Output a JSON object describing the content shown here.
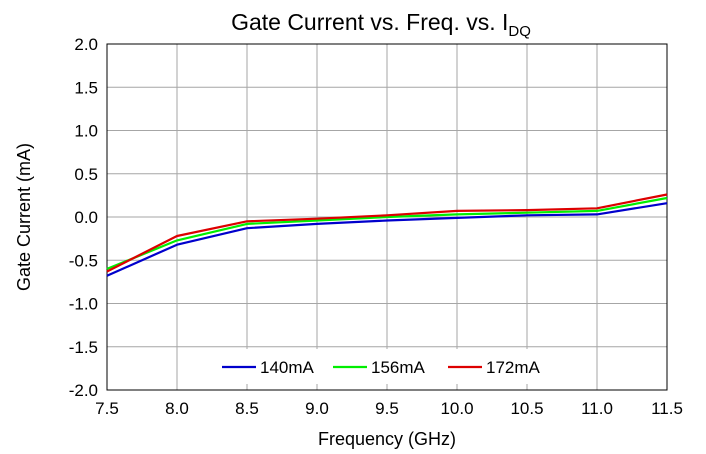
{
  "chart_data": {
    "type": "line",
    "title": "Gate Current vs. Freq. vs. I",
    "title_subscript": "DQ",
    "xlabel": "Frequency (GHz)",
    "ylabel": "Gate Current (mA)",
    "xlim": [
      7.5,
      11.5
    ],
    "ylim": [
      -2.0,
      2.0
    ],
    "x_ticks": [
      "7.5",
      "8.0",
      "8.5",
      "9.0",
      "9.5",
      "10.0",
      "10.5",
      "11.0",
      "11.5"
    ],
    "y_ticks": [
      "2.0",
      "1.5",
      "1.0",
      "0.5",
      "0.0",
      "-0.5",
      "-1.0",
      "-1.5",
      "-2.0"
    ],
    "grid": true,
    "legend_position": "bottom-center",
    "x": [
      7.5,
      8.0,
      8.5,
      9.0,
      9.5,
      10.0,
      10.5,
      11.0,
      11.5
    ],
    "series": [
      {
        "name": "140mA",
        "color": "#0000cc",
        "values": [
          -0.68,
          -0.32,
          -0.13,
          -0.08,
          -0.04,
          -0.01,
          0.02,
          0.03,
          0.16
        ]
      },
      {
        "name": "156mA",
        "color": "#00ee00",
        "values": [
          -0.6,
          -0.27,
          -0.08,
          -0.04,
          0.0,
          0.03,
          0.05,
          0.07,
          0.22
        ]
      },
      {
        "name": "172mA",
        "color": "#dd0000",
        "values": [
          -0.63,
          -0.22,
          -0.05,
          -0.02,
          0.02,
          0.07,
          0.08,
          0.1,
          0.26
        ]
      }
    ]
  }
}
